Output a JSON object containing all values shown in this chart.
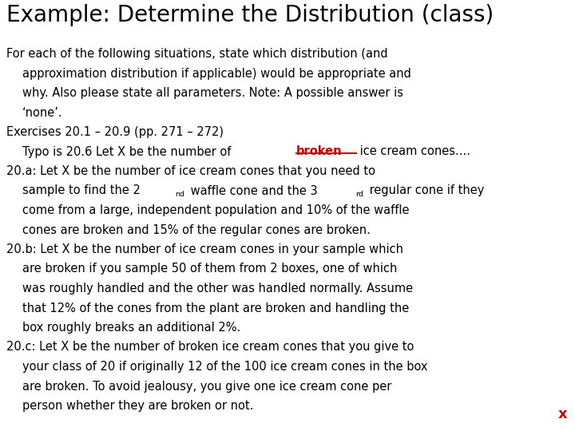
{
  "title": "Example: Determine the Distribution (class)",
  "bg_color": "#ffffff",
  "title_color": "#000000",
  "title_fontsize": 20,
  "body_fontsize": 10.5,
  "body_color": "#000000",
  "red_color": "#cc0000",
  "x_mark": "x",
  "lines": [
    {
      "text": "For each of the following situations, state which distribution (and",
      "indent": 0
    },
    {
      "text": "approximation distribution if applicable) would be appropriate and",
      "indent": 1
    },
    {
      "text": "why. Also please state all parameters. Note: A possible answer is",
      "indent": 1
    },
    {
      "text": "‘none’.",
      "indent": 1
    },
    {
      "text": "Exercises 20.1 – 20.9 (pp. 271 – 272)",
      "indent": 0
    },
    {
      "text": "Typo is 20.6 Let X be the number of ",
      "indent": 1,
      "suffix": "broken",
      "suffix_style": "strikethrough_red",
      "suffix2": " ice cream cones...."
    },
    {
      "text": "20.a: Let X be the number of ice cream cones that you need to",
      "indent": 0
    },
    {
      "text": "sample to find the 2",
      "indent": 1,
      "sup1": "nd",
      "mid1": " waffle cone and the 3",
      "sup2": "rd",
      "suffix2": " regular cone if they"
    },
    {
      "text": "come from a large, independent population and 10% of the waffle",
      "indent": 1
    },
    {
      "text": "cones are broken and 15% of the regular cones are broken.",
      "indent": 1
    },
    {
      "text": "20.b: Let X be the number of ice cream cones in your sample which",
      "indent": 0
    },
    {
      "text": "are broken if you sample 50 of them from 2 boxes, one of which",
      "indent": 1
    },
    {
      "text": "was roughly handled and the other was handled normally. Assume",
      "indent": 1
    },
    {
      "text": "that 12% of the cones from the plant are broken and handling the",
      "indent": 1
    },
    {
      "text": "box roughly breaks an additional 2%.",
      "indent": 1
    },
    {
      "text": "20.c: Let X be the number of broken ice cream cones that you give to",
      "indent": 0
    },
    {
      "text": "your class of 20 if originally 12 of the 100 ice cream cones in the box",
      "indent": 1
    },
    {
      "text": "are broken. To avoid jealousy, you give one ice cream cone per",
      "indent": 1
    },
    {
      "text": "person whether they are broken or not.",
      "indent": 1
    }
  ]
}
